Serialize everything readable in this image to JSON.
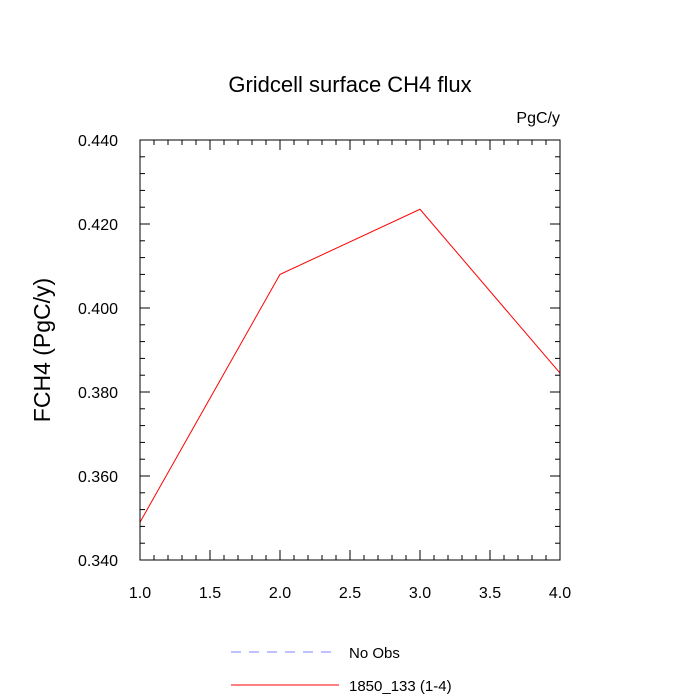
{
  "chart_data": {
    "type": "line",
    "title": "Gridcell surface CH4 flux",
    "units": "PgC/y",
    "ylabel": "FCH4  (PgC/y)",
    "xlabel": "",
    "xlim": [
      1.0,
      4.0
    ],
    "ylim": [
      0.34,
      0.44
    ],
    "xticks": [
      "1.0",
      "1.5",
      "2.0",
      "2.5",
      "3.0",
      "3.5",
      "4.0"
    ],
    "yticks": [
      "0.340",
      "0.360",
      "0.380",
      "0.400",
      "0.420",
      "0.440"
    ],
    "grid": false,
    "legend_placement": "bottom",
    "series": [
      {
        "name": "No Obs",
        "color": "#8080ff",
        "dashed": true,
        "x": [],
        "y": []
      },
      {
        "name": "1850_133 (1-4)",
        "color": "#ff0000",
        "dashed": false,
        "x": [
          1,
          2,
          3,
          4
        ],
        "y": [
          0.349,
          0.408,
          0.4235,
          0.3845
        ]
      }
    ]
  }
}
